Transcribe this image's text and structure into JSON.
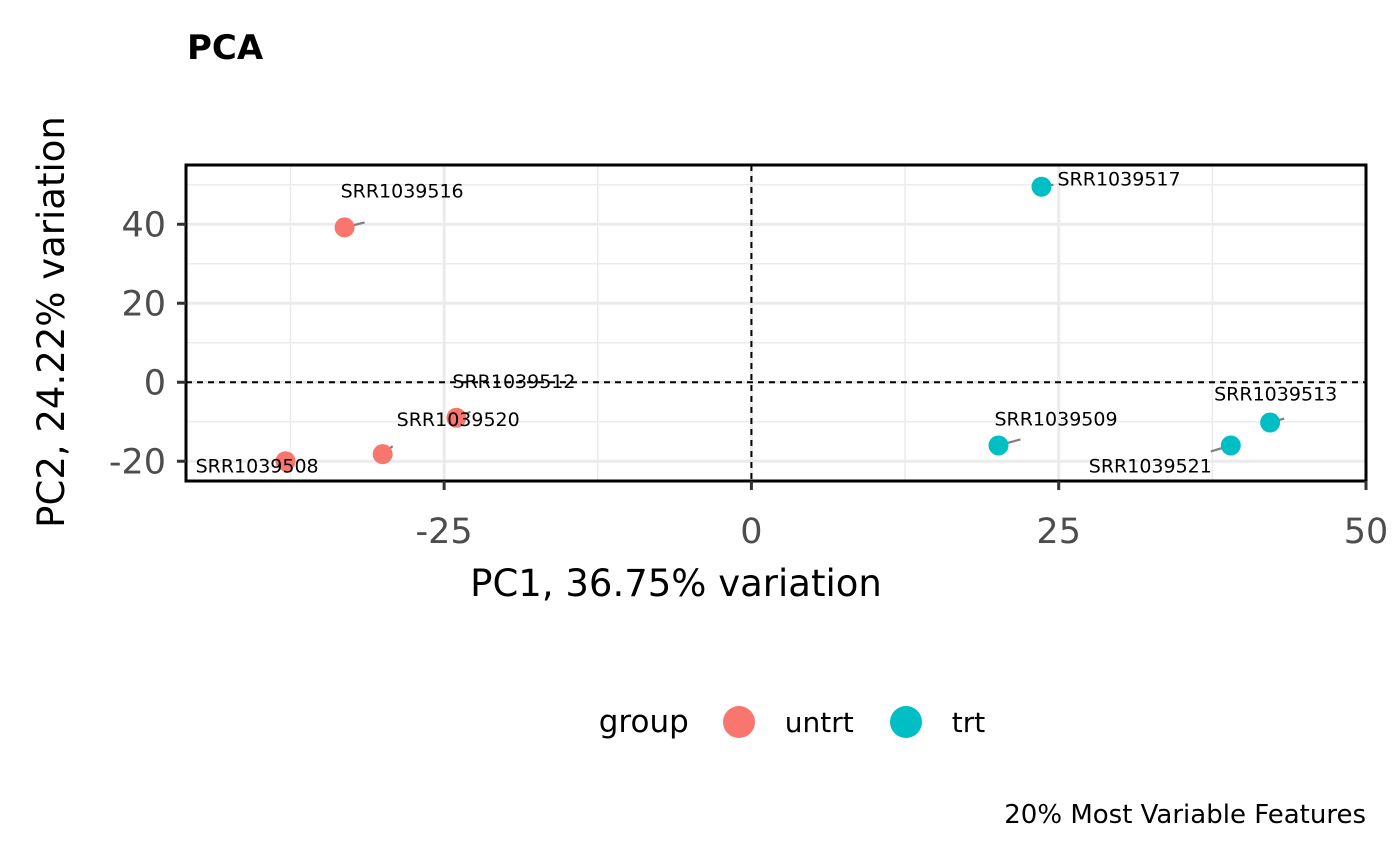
{
  "chart_data": {
    "type": "scatter",
    "title": "PCA",
    "caption": "20% Most Variable Features",
    "xlabel": "PC1, 36.75% variation",
    "ylabel": "PC2, 24.22% variation",
    "xlim": [
      -46,
      50
    ],
    "ylim": [
      -25,
      55
    ],
    "xticks": [
      -25,
      0,
      25,
      50
    ],
    "xtick_labels": [
      "-25",
      "0",
      "25",
      "50"
    ],
    "yticks": [
      -20,
      0,
      20,
      40
    ],
    "ytick_labels": [
      "-20",
      "0",
      "20",
      "40"
    ],
    "grid": true,
    "reference_lines": {
      "x": 0,
      "y": 0,
      "style": "dashed"
    },
    "legend": {
      "title": "group",
      "position": "bottom",
      "entries": [
        {
          "label": "untrt",
          "color": "#F8766D"
        },
        {
          "label": "trt",
          "color": "#00BFC4"
        }
      ]
    },
    "series": [
      {
        "name": "untrt",
        "color": "#F8766D",
        "points": [
          {
            "label": "SRR1039516",
            "x": -33.1,
            "y": 39.2
          },
          {
            "label": "SRR1039512",
            "x": -24.0,
            "y": -9.0
          },
          {
            "label": "SRR1039520",
            "x": -30.0,
            "y": -18.2
          },
          {
            "label": "SRR1039508",
            "x": -37.9,
            "y": -20.0
          }
        ]
      },
      {
        "name": "trt",
        "color": "#00BFC4",
        "points": [
          {
            "label": "SRR1039517",
            "x": 23.6,
            "y": 49.5
          },
          {
            "label": "SRR1039513",
            "x": 42.2,
            "y": -10.2
          },
          {
            "label": "SRR1039509",
            "x": 20.1,
            "y": -16.0
          },
          {
            "label": "SRR1039521",
            "x": 39.0,
            "y": -16.0
          }
        ]
      }
    ]
  }
}
